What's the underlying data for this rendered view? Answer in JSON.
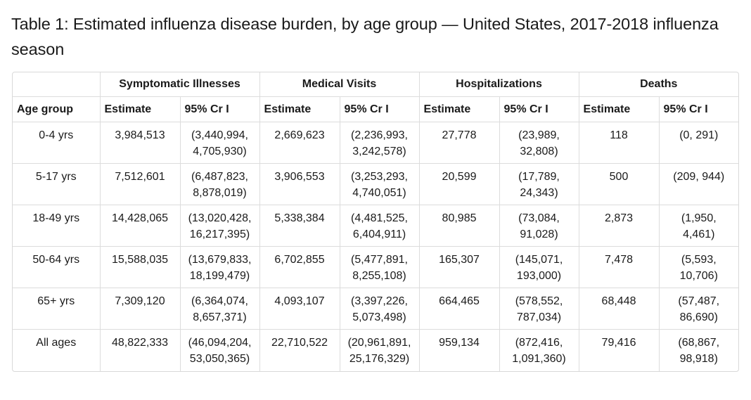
{
  "title": "Table 1: Estimated influenza disease burden, by age group — United States, 2017-2018 influenza season",
  "groups": [
    "Symptomatic Illnesses",
    "Medical Visits",
    "Hospitalizations",
    "Deaths"
  ],
  "subheaders": {
    "age": "Age group",
    "estimate": "Estimate",
    "ci": "95% Cr I"
  },
  "rows": [
    {
      "age": "0-4 yrs",
      "cells": [
        {
          "estimate": "3,984,513",
          "ci1": "(3,440,994,",
          "ci2": "4,705,930)"
        },
        {
          "estimate": "2,669,623",
          "ci1": "(2,236,993,",
          "ci2": "3,242,578)"
        },
        {
          "estimate": "27,778",
          "ci1": "(23,989,",
          "ci2": "32,808)"
        },
        {
          "estimate": "118",
          "ci1": "(0, 291)",
          "ci2": ""
        }
      ]
    },
    {
      "age": "5-17 yrs",
      "cells": [
        {
          "estimate": "7,512,601",
          "ci1": "(6,487,823,",
          "ci2": "8,878,019)"
        },
        {
          "estimate": "3,906,553",
          "ci1": "(3,253,293,",
          "ci2": "4,740,051)"
        },
        {
          "estimate": "20,599",
          "ci1": "(17,789,",
          "ci2": "24,343)"
        },
        {
          "estimate": "500",
          "ci1": "(209, 944)",
          "ci2": ""
        }
      ]
    },
    {
      "age": "18-49 yrs",
      "cells": [
        {
          "estimate": "14,428,065",
          "ci1": "(13,020,428,",
          "ci2": "16,217,395)"
        },
        {
          "estimate": "5,338,384",
          "ci1": "(4,481,525,",
          "ci2": "6,404,911)"
        },
        {
          "estimate": "80,985",
          "ci1": "(73,084,",
          "ci2": "91,028)"
        },
        {
          "estimate": "2,873",
          "ci1": "(1,950,",
          "ci2": "4,461)"
        }
      ]
    },
    {
      "age": "50-64 yrs",
      "cells": [
        {
          "estimate": "15,588,035",
          "ci1": "(13,679,833,",
          "ci2": "18,199,479)"
        },
        {
          "estimate": "6,702,855",
          "ci1": "(5,477,891,",
          "ci2": "8,255,108)"
        },
        {
          "estimate": "165,307",
          "ci1": "(145,071,",
          "ci2": "193,000)"
        },
        {
          "estimate": "7,478",
          "ci1": "(5,593,",
          "ci2": "10,706)"
        }
      ]
    },
    {
      "age": "65+ yrs",
      "cells": [
        {
          "estimate": "7,309,120",
          "ci1": "(6,364,074,",
          "ci2": "8,657,371)"
        },
        {
          "estimate": "4,093,107",
          "ci1": "(3,397,226,",
          "ci2": "5,073,498)"
        },
        {
          "estimate": "664,465",
          "ci1": "(578,552,",
          "ci2": "787,034)"
        },
        {
          "estimate": "68,448",
          "ci1": "(57,487,",
          "ci2": "86,690)"
        }
      ]
    },
    {
      "age": "All ages",
      "cells": [
        {
          "estimate": "48,822,333",
          "ci1": "(46,094,204,",
          "ci2": "53,050,365)"
        },
        {
          "estimate": "22,710,522",
          "ci1": "(20,961,891,",
          "ci2": "25,176,329)"
        },
        {
          "estimate": "959,134",
          "ci1": "(872,416,",
          "ci2": "1,091,360)"
        },
        {
          "estimate": "79,416",
          "ci1": "(68,867,",
          "ci2": "98,918)"
        }
      ]
    }
  ]
}
